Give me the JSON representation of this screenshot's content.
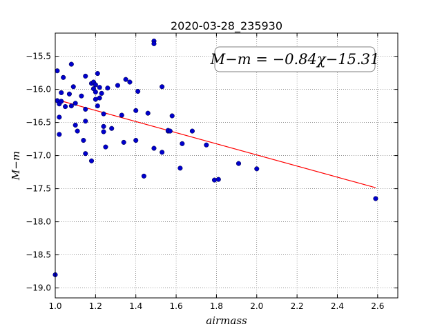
{
  "chart_data": {
    "type": "scatter",
    "title": "2020-03-28_235930",
    "xlabel": "airmass",
    "ylabel": "M−m",
    "xlim": [
      1.0,
      2.7
    ],
    "ylim": [
      -19.15,
      -15.15
    ],
    "x_ticks": [
      1.0,
      1.2,
      1.4,
      1.6,
      1.8,
      2.0,
      2.2,
      2.4,
      2.6
    ],
    "x_tick_labels": [
      "1.0",
      "1.2",
      "1.4",
      "1.6",
      "1.8",
      "2.0",
      "2.2",
      "2.4",
      "2.6"
    ],
    "y_ticks": [
      -15.5,
      -16.0,
      -16.5,
      -17.0,
      -17.5,
      -18.0,
      -18.5,
      -19.0
    ],
    "y_tick_labels": [
      "−15.5",
      "−16.0",
      "−16.5",
      "−17.0",
      "−17.5",
      "−18.0",
      "−18.5",
      "−19.0"
    ],
    "grid": true,
    "annotation": "M−m = −0.84χ−15.31",
    "fit": {
      "slope": -0.84,
      "intercept": -15.31,
      "x_range": [
        1.0,
        2.59
      ],
      "color": "#ff0000"
    },
    "point_color": "#0000cc",
    "points": [
      [
        1.0,
        -18.8
      ],
      [
        1.01,
        -15.72
      ],
      [
        1.01,
        -16.17
      ],
      [
        1.02,
        -16.22
      ],
      [
        1.02,
        -16.68
      ],
      [
        1.02,
        -16.42
      ],
      [
        1.03,
        -16.05
      ],
      [
        1.03,
        -16.18
      ],
      [
        1.04,
        -15.82
      ],
      [
        1.05,
        -16.26
      ],
      [
        1.07,
        -16.07
      ],
      [
        1.08,
        -16.25
      ],
      [
        1.08,
        -15.62
      ],
      [
        1.09,
        -15.96
      ],
      [
        1.1,
        -16.54
      ],
      [
        1.1,
        -16.21
      ],
      [
        1.11,
        -16.63
      ],
      [
        1.13,
        -16.1
      ],
      [
        1.14,
        -16.77
      ],
      [
        1.15,
        -15.8
      ],
      [
        1.15,
        -16.3
      ],
      [
        1.15,
        -16.48
      ],
      [
        1.15,
        -16.97
      ],
      [
        1.18,
        -15.91
      ],
      [
        1.18,
        -17.08
      ],
      [
        1.19,
        -15.89
      ],
      [
        1.19,
        -15.99
      ],
      [
        1.2,
        -15.93
      ],
      [
        1.2,
        -16.04
      ],
      [
        1.2,
        -16.15
      ],
      [
        1.21,
        -15.76
      ],
      [
        1.21,
        -16.25
      ],
      [
        1.22,
        -16.13
      ],
      [
        1.22,
        -15.97
      ],
      [
        1.23,
        -16.06
      ],
      [
        1.24,
        -16.37
      ],
      [
        1.24,
        -16.56
      ],
      [
        1.24,
        -16.64
      ],
      [
        1.25,
        -16.87
      ],
      [
        1.26,
        -15.98
      ],
      [
        1.28,
        -16.59
      ],
      [
        1.31,
        -15.94
      ],
      [
        1.33,
        -16.39
      ],
      [
        1.34,
        -16.8
      ],
      [
        1.35,
        -15.85
      ],
      [
        1.37,
        -15.89
      ],
      [
        1.4,
        -16.32
      ],
      [
        1.4,
        -16.77
      ],
      [
        1.41,
        -16.03
      ],
      [
        1.44,
        -17.31
      ],
      [
        1.46,
        -16.36
      ],
      [
        1.49,
        -15.27
      ],
      [
        1.49,
        -15.31
      ],
      [
        1.49,
        -16.89
      ],
      [
        1.53,
        -16.95
      ],
      [
        1.53,
        -15.96
      ],
      [
        1.56,
        -16.63
      ],
      [
        1.56,
        -16.62
      ],
      [
        1.57,
        -16.63
      ],
      [
        1.58,
        -16.4
      ],
      [
        1.62,
        -17.19
      ],
      [
        1.63,
        -16.82
      ],
      [
        1.68,
        -16.63
      ],
      [
        1.75,
        -16.84
      ],
      [
        1.79,
        -17.37
      ],
      [
        1.81,
        -17.36
      ],
      [
        1.91,
        -17.12
      ],
      [
        2.0,
        -17.2
      ],
      [
        2.59,
        -17.65
      ]
    ]
  }
}
